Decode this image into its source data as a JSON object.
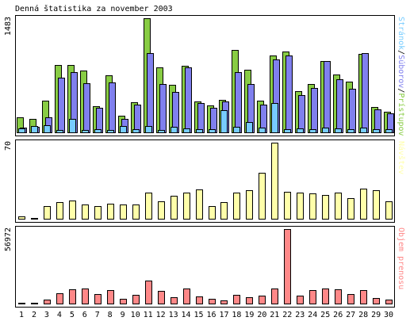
{
  "title": "Denná štatistika za november 2003",
  "colors": {
    "background": "#ffffff",
    "panel_border": "#000000",
    "pristupov": "#88cc44",
    "suborov": "#8080ee",
    "stranok": "#77ccff",
    "navstev": "#ffffaa",
    "objem": "#ff8888",
    "weekday_label": "#000000",
    "weekend_label": "#88bb33",
    "holiday_label": "#ff7777"
  },
  "chart_data": [
    {
      "type": "bar",
      "name": "hits-files-pages",
      "ymax_label": "1483",
      "ylim": [
        0,
        1483
      ],
      "legend": [
        {
          "label": "Prístupov",
          "color": "#88cc44"
        },
        {
          "label": "Súborov",
          "color": "#8080ee"
        },
        {
          "label": "Stránok",
          "color": "#77ccff"
        }
      ],
      "legend_separator": "/",
      "categories": [
        "1",
        "2",
        "3",
        "4",
        "5",
        "6",
        "7",
        "8",
        "9",
        "10",
        "11",
        "12",
        "13",
        "14",
        "15",
        "16",
        "17",
        "18",
        "19",
        "20",
        "21",
        "22",
        "23",
        "24",
        "25",
        "26",
        "27",
        "28",
        "29",
        "30"
      ],
      "series": [
        {
          "name": "Prístupov",
          "values": [
            200,
            180,
            410,
            880,
            880,
            800,
            340,
            740,
            220,
            390,
            1483,
            840,
            620,
            870,
            400,
            350,
            420,
            1070,
            810,
            410,
            1000,
            1050,
            540,
            630,
            930,
            750,
            660,
            1020,
            330,
            270
          ]
        },
        {
          "name": "Súborov",
          "values": [
            60,
            70,
            200,
            710,
            780,
            640,
            320,
            650,
            180,
            360,
            1030,
            630,
            530,
            840,
            380,
            320,
            400,
            780,
            630,
            360,
            950,
            1000,
            480,
            580,
            930,
            690,
            570,
            1030,
            300,
            250
          ]
        },
        {
          "name": "Stránok",
          "values": [
            50,
            80,
            90,
            30,
            180,
            30,
            40,
            30,
            80,
            40,
            80,
            30,
            70,
            50,
            40,
            40,
            290,
            70,
            130,
            60,
            380,
            40,
            50,
            40,
            60,
            50,
            40,
            60,
            40,
            40
          ]
        }
      ]
    },
    {
      "type": "bar",
      "name": "visits",
      "ymax_label": "70",
      "ylim": [
        0,
        70
      ],
      "legend": [
        {
          "label": "Návštev",
          "color": "#ffffaa"
        }
      ],
      "categories": [
        "1",
        "2",
        "3",
        "4",
        "5",
        "6",
        "7",
        "8",
        "9",
        "10",
        "11",
        "12",
        "13",
        "14",
        "15",
        "16",
        "17",
        "18",
        "19",
        "20",
        "21",
        "22",
        "23",
        "24",
        "25",
        "26",
        "27",
        "28",
        "29",
        "30"
      ],
      "values": [
        2,
        1,
        12,
        15,
        17,
        13,
        12,
        14,
        13,
        13,
        24,
        16,
        21,
        24,
        27,
        12,
        15,
        24,
        26,
        42,
        70,
        25,
        24,
        23,
        22,
        24,
        19,
        28,
        26,
        16
      ]
    },
    {
      "type": "bar",
      "name": "volume",
      "ymax_label": "56972",
      "ylim": [
        0,
        56972
      ],
      "legend": [
        {
          "label": "Objem prenosu",
          "color": "#ff8888"
        }
      ],
      "categories": [
        "1",
        "2",
        "3",
        "4",
        "5",
        "6",
        "7",
        "8",
        "9",
        "10",
        "11",
        "12",
        "13",
        "14",
        "15",
        "16",
        "17",
        "18",
        "19",
        "20",
        "21",
        "22",
        "23",
        "24",
        "25",
        "26",
        "27",
        "28",
        "29",
        "30"
      ],
      "values": [
        500,
        600,
        2800,
        8100,
        11000,
        11500,
        7000,
        10200,
        3800,
        6500,
        17500,
        10000,
        5000,
        11500,
        5200,
        3500,
        2500,
        6500,
        4800,
        6000,
        11500,
        56972,
        5900,
        10500,
        11500,
        11200,
        7500,
        10500,
        4500,
        2800
      ]
    }
  ],
  "x_axis": {
    "days": [
      "1",
      "2",
      "3",
      "4",
      "5",
      "6",
      "7",
      "8",
      "9",
      "10",
      "11",
      "12",
      "13",
      "14",
      "15",
      "16",
      "17",
      "18",
      "19",
      "20",
      "21",
      "22",
      "23",
      "24",
      "25",
      "26",
      "27",
      "28",
      "29",
      "30"
    ],
    "day_types": [
      "weekend",
      "weekend",
      "weekday",
      "weekday",
      "weekday",
      "weekday",
      "weekday",
      "weekend",
      "weekend",
      "weekday",
      "weekday",
      "weekday",
      "weekday",
      "weekday",
      "weekend",
      "weekend",
      "weekday",
      "weekday",
      "weekday",
      "weekday",
      "weekday",
      "holiday",
      "holiday",
      "weekday",
      "weekday",
      "weekday",
      "weekday",
      "weekday",
      "weekend",
      "weekend"
    ]
  }
}
